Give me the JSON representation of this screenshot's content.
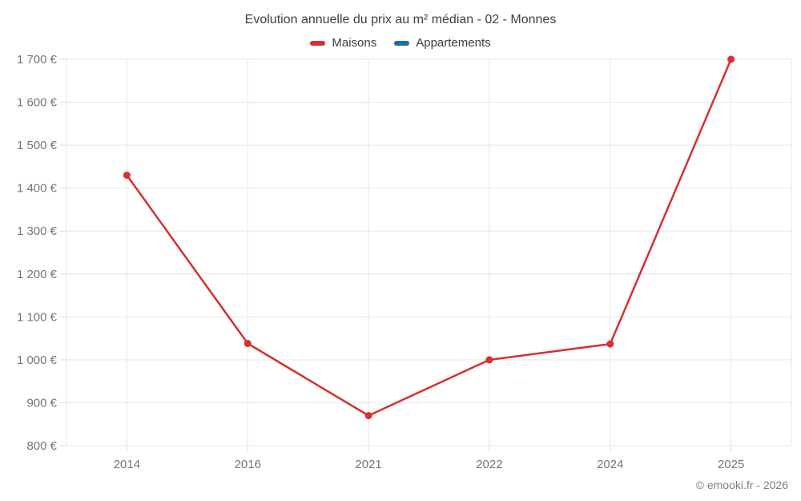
{
  "chart": {
    "title": "Evolution annuelle du prix au m² médian - 02 - Monnes",
    "legend": [
      {
        "label": "Maisons",
        "color": "#d53032"
      },
      {
        "label": "Appartements",
        "color": "#1c6ea4"
      }
    ],
    "footer": "© emooki.fr - 2026"
  },
  "chart_data": {
    "type": "line",
    "title": "Evolution annuelle du prix au m² médian - 02 - Monnes",
    "categories": [
      "2014",
      "2016",
      "2021",
      "2022",
      "2024",
      "2025"
    ],
    "series": [
      {
        "name": "Maisons",
        "color": "#d53032",
        "values": [
          1430,
          1038,
          870,
          1000,
          1037,
          1700
        ]
      },
      {
        "name": "Appartements",
        "color": "#1c6ea4",
        "values": []
      }
    ],
    "xlabel": "",
    "ylabel": "",
    "ylim": [
      800,
      1700
    ],
    "ytick_step": 100,
    "ytick_labels": [
      "1 700 €",
      "1 600 €",
      "1 500 €",
      "1 400 €",
      "1 300 €",
      "1 200 €",
      "1 100 €",
      "1 000 €",
      "900 €",
      "800 €"
    ],
    "xtick_labels": [
      "2014",
      "2016",
      "2021",
      "2022",
      "2024",
      "2025"
    ],
    "grid": true,
    "legend_position": "top",
    "marker": "circle"
  }
}
